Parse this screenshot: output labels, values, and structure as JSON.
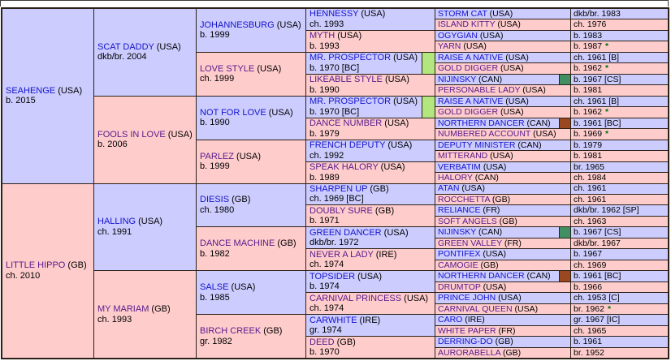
{
  "colors": {
    "male_bg": "#ccccff",
    "female_bg": "#ffcccc",
    "sire_link_blue": "#1414cc",
    "dam_link_purple": "#551a8b",
    "grid_line": "#2a2118",
    "marker_lightgreen": "#b3e67f",
    "marker_darkgreen": "#418f63",
    "marker_brown": "#99481f",
    "star_green": "#007000"
  },
  "chart_data": {
    "type": "table",
    "title": "Thoroughbred 5-generation pedigree chart",
    "subject": "SEAHENGE (USA) b. 2015 x LITTLE HIPPO (GB) ch. 2010",
    "columns": [
      "generation-1",
      "generation-2",
      "generation-3",
      "generation-4",
      "generation-5",
      "color-year"
    ],
    "legend_markers": {
      "lightgreen_bar": "duplicate ancestor highlight (MR. PROSPECTOR)",
      "darkgreen_square": "duplicate ancestor highlight (NIJINSKY)",
      "brown_square": "duplicate ancestor highlight (NORTHERN DANCER)",
      "green_asterisk": "mare note"
    }
  },
  "pedigree": {
    "gen1": [
      {
        "name": "SEAHENGE",
        "country": "(USA)",
        "year": "b. 2015",
        "sex": "m"
      },
      {
        "name": "LITTLE HIPPO",
        "country": "(GB)",
        "year": "ch. 2010",
        "sex": "f"
      }
    ],
    "gen2": [
      {
        "name": "SCAT DADDY",
        "country": "(USA)",
        "year": "dkb/br. 2004",
        "sex": "m"
      },
      {
        "name": "FOOLS IN LOVE",
        "country": "(USA)",
        "year": "b. 2006",
        "sex": "f"
      },
      {
        "name": "HALLING",
        "country": "(USA)",
        "year": "ch. 1991",
        "sex": "m"
      },
      {
        "name": "MY MARIAM",
        "country": "(GB)",
        "year": "ch. 1993",
        "sex": "f"
      }
    ],
    "gen3": [
      {
        "name": "JOHANNESBURG",
        "country": "(USA)",
        "year": "b. 1999",
        "sex": "m"
      },
      {
        "name": "LOVE STYLE",
        "country": "(USA)",
        "year": "ch. 1999",
        "sex": "f"
      },
      {
        "name": "NOT FOR LOVE",
        "country": "(USA)",
        "year": "b. 1990",
        "sex": "m"
      },
      {
        "name": "PARLEZ",
        "country": "(USA)",
        "year": "b. 1999",
        "sex": "f"
      },
      {
        "name": "DIESIS",
        "country": "(GB)",
        "year": "ch. 1980",
        "sex": "m"
      },
      {
        "name": "DANCE MACHINE",
        "country": "(GB)",
        "year": "b. 1982",
        "sex": "f"
      },
      {
        "name": "SALSE",
        "country": "(USA)",
        "year": "b. 1985",
        "sex": "m"
      },
      {
        "name": "BIRCH CREEK",
        "country": "(GB)",
        "year": "gr. 1982",
        "sex": "f"
      }
    ],
    "gen4": [
      {
        "name": "HENNESSY",
        "country": "(USA)",
        "year": "ch. 1993",
        "sex": "m"
      },
      {
        "name": "MYTH",
        "country": "(USA)",
        "year": "b. 1993",
        "sex": "f"
      },
      {
        "name": "MR. PROSPECTOR",
        "country": "(USA)",
        "year": "b. 1970 [BC]",
        "sex": "m",
        "marker": "lightgreen"
      },
      {
        "name": "LIKEABLE STYLE",
        "country": "(USA)",
        "year": "b. 1990",
        "sex": "f"
      },
      {
        "name": "MR. PROSPECTOR",
        "country": "(USA)",
        "year": "b. 1970 [BC]",
        "sex": "m",
        "marker": "lightgreen"
      },
      {
        "name": "DANCE NUMBER",
        "country": "(USA)",
        "year": "b. 1979",
        "sex": "f"
      },
      {
        "name": "FRENCH DEPUTY",
        "country": "(USA)",
        "year": "ch. 1992",
        "sex": "m"
      },
      {
        "name": "SPEAK HALORY",
        "country": "(USA)",
        "year": "b. 1989",
        "sex": "f"
      },
      {
        "name": "SHARPEN UP",
        "country": "(GB)",
        "year": "ch. 1969 [BC]",
        "sex": "m"
      },
      {
        "name": "DOUBLY SURE",
        "country": "(GB)",
        "year": "b. 1971",
        "sex": "f"
      },
      {
        "name": "GREEN DANCER",
        "country": "(USA)",
        "year": "dkb/br. 1972",
        "sex": "m"
      },
      {
        "name": "NEVER A LADY",
        "country": "(IRE)",
        "year": "ch. 1974",
        "sex": "f"
      },
      {
        "name": "TOPSIDER",
        "country": "(USA)",
        "year": "b. 1974",
        "sex": "m"
      },
      {
        "name": "CARNIVAL PRINCESS",
        "country": "(USA)",
        "year": "ch. 1974",
        "sex": "f"
      },
      {
        "name": "CARWHITE",
        "country": "(IRE)",
        "year": "gr. 1974",
        "sex": "m"
      },
      {
        "name": "DEED",
        "country": "(GB)",
        "year": "b. 1970",
        "sex": "f"
      }
    ],
    "gen5": [
      {
        "name": "STORM CAT",
        "country": "(USA)",
        "year": "dkb/br. 1983",
        "sex": "m"
      },
      {
        "name": "ISLAND KITTY",
        "country": "(USA)",
        "year": "ch. 1976",
        "sex": "f"
      },
      {
        "name": "OGYGIAN",
        "country": "(USA)",
        "year": "b. 1983",
        "sex": "m"
      },
      {
        "name": "YARN",
        "country": "(USA)",
        "year": "b. 1987",
        "star": true,
        "sex": "f"
      },
      {
        "name": "RAISE A NATIVE",
        "country": "(USA)",
        "year": "ch. 1961 [B]",
        "sex": "m"
      },
      {
        "name": "GOLD DIGGER",
        "country": "(USA)",
        "year": "b. 1962",
        "star": true,
        "sex": "f"
      },
      {
        "name": "NIJINSKY",
        "country": "(CAN)",
        "year": "b. 1967 [CS]",
        "sex": "m",
        "marker": "darkgreen"
      },
      {
        "name": "PERSONABLE LADY",
        "country": "(USA)",
        "year": "b. 1981",
        "sex": "f"
      },
      {
        "name": "RAISE A NATIVE",
        "country": "(USA)",
        "year": "ch. 1961 [B]",
        "sex": "m"
      },
      {
        "name": "GOLD DIGGER",
        "country": "(USA)",
        "year": "b. 1962",
        "star": true,
        "sex": "f"
      },
      {
        "name": "NORTHERN DANCER",
        "country": "(CAN)",
        "year": "b. 1961 [BC]",
        "sex": "m",
        "marker": "brown"
      },
      {
        "name": "NUMBERED ACCOUNT",
        "country": "(USA)",
        "year": "b. 1969",
        "star": true,
        "sex": "f"
      },
      {
        "name": "DEPUTY MINISTER",
        "country": "(CAN)",
        "year": "b. 1979",
        "sex": "m"
      },
      {
        "name": "MITTERAND",
        "country": "(USA)",
        "year": "b. 1981",
        "sex": "f"
      },
      {
        "name": "VERBATIM",
        "country": "(USA)",
        "year": "br. 1965",
        "sex": "m"
      },
      {
        "name": "HALORY",
        "country": "(CAN)",
        "year": "ch. 1984",
        "sex": "f"
      },
      {
        "name": "ATAN",
        "country": "(USA)",
        "year": "ch. 1961",
        "sex": "m"
      },
      {
        "name": "ROCCHETTA",
        "country": "(GB)",
        "year": "ch. 1961",
        "sex": "f"
      },
      {
        "name": "RELIANCE",
        "country": "(FR)",
        "year": "dkb/br. 1962 [SP]",
        "sex": "m"
      },
      {
        "name": "SOFT ANGELS",
        "country": "(GB)",
        "year": "ch. 1963",
        "sex": "f"
      },
      {
        "name": "NIJINSKY",
        "country": "(CAN)",
        "year": "b. 1967 [CS]",
        "sex": "m",
        "marker": "darkgreen"
      },
      {
        "name": "GREEN VALLEY",
        "country": "(FR)",
        "year": "dkb/br. 1967",
        "sex": "f"
      },
      {
        "name": "PONTIFEX",
        "country": "(USA)",
        "year": "b. 1967",
        "sex": "m"
      },
      {
        "name": "CAMOGIE",
        "country": "(GB)",
        "year": "ch. 1969",
        "sex": "f"
      },
      {
        "name": "NORTHERN DANCER",
        "country": "(CAN)",
        "year": "b. 1961 [BC]",
        "sex": "m",
        "marker": "brown"
      },
      {
        "name": "DRUMTOP",
        "country": "(USA)",
        "year": "b. 1966",
        "sex": "f"
      },
      {
        "name": "PRINCE JOHN",
        "country": "(USA)",
        "year": "ch. 1953 [C]",
        "sex": "m"
      },
      {
        "name": "CARNIVAL QUEEN",
        "country": "(USA)",
        "year": "br. 1962",
        "star": true,
        "sex": "f"
      },
      {
        "name": "CARO",
        "country": "(IRE)",
        "year": "gr. 1967 [IC]",
        "sex": "m"
      },
      {
        "name": "WHITE PAPER",
        "country": "(FR)",
        "year": "ch. 1965",
        "sex": "f"
      },
      {
        "name": "DERRING-DO",
        "country": "(GB)",
        "year": "b. 1961",
        "sex": "m"
      },
      {
        "name": "AURORABELLA",
        "country": "(GB)",
        "year": "br. 1952",
        "sex": "f"
      }
    ]
  }
}
